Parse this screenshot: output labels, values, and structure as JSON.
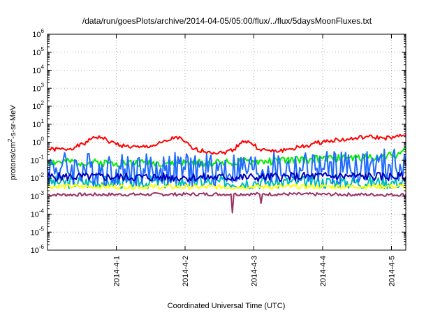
{
  "chart_data": {
    "type": "line",
    "title": "/data/run/goesPlots/archive/2014-04-05/05:00/flux/../flux/5daysMoonFluxes.txt",
    "xlabel": "Coordinated Universal Time (UTC)",
    "ylabel_parts": {
      "pre": "protons/cm",
      "sup": "2",
      "post": "-s-sr-MeV"
    },
    "y_scale": "log",
    "ylim": [
      1e-06,
      1000000.0
    ],
    "y_ticks": [
      {
        "exp": "-6",
        "value": 1e-06
      },
      {
        "exp": "-5",
        "value": 1e-05
      },
      {
        "exp": "-4",
        "value": 0.0001
      },
      {
        "exp": "-3",
        "value": 0.001
      },
      {
        "exp": "-2",
        "value": 0.01
      },
      {
        "exp": "-1",
        "value": 0.1
      },
      {
        "exp": "0",
        "value": 1
      },
      {
        "exp": "1",
        "value": 10
      },
      {
        "exp": "2",
        "value": 100
      },
      {
        "exp": "3",
        "value": 1000
      },
      {
        "exp": "4",
        "value": 10000
      },
      {
        "exp": "5",
        "value": 100000
      },
      {
        "exp": "6",
        "value": 1000000
      }
    ],
    "xlim": [
      "2014-03-31T00:00",
      "2014-04-05T05:00"
    ],
    "x_ticks": [
      {
        "label": "2014-4-1",
        "t": "2014-04-01T00:00"
      },
      {
        "label": "2014-4-2",
        "t": "2014-04-02T00:00"
      },
      {
        "label": "2014-4-3",
        "t": "2014-04-03T00:00"
      },
      {
        "label": "2014-4-4",
        "t": "2014-04-04T00:00"
      },
      {
        "label": "2014-4-5",
        "t": "2014-04-05T00:00"
      }
    ],
    "grid": true,
    "series": [
      {
        "color": "#ff0000",
        "noise": 0.04,
        "seed": 1,
        "points": [
          [
            "2014-03-31T00:00",
            0.4
          ],
          [
            "2014-03-31T06:00",
            0.4
          ],
          [
            "2014-03-31T10:00",
            0.55
          ],
          [
            "2014-03-31T14:00",
            1.0
          ],
          [
            "2014-03-31T16:00",
            2.0
          ],
          [
            "2014-03-31T19:00",
            1.8
          ],
          [
            "2014-03-31T22:00",
            1.0
          ],
          [
            "2014-04-01T03:00",
            0.6
          ],
          [
            "2014-04-01T08:00",
            0.5
          ],
          [
            "2014-04-01T14:00",
            0.7
          ],
          [
            "2014-04-01T18:00",
            1.2
          ],
          [
            "2014-04-01T21:00",
            2.0
          ],
          [
            "2014-04-02T00:00",
            1.0
          ],
          [
            "2014-04-02T03:00",
            0.4
          ],
          [
            "2014-04-02T08:00",
            0.3
          ],
          [
            "2014-04-02T13:00",
            0.25
          ],
          [
            "2014-04-02T17:00",
            0.4
          ],
          [
            "2014-04-02T20:00",
            1.2
          ],
          [
            "2014-04-02T23:00",
            0.9
          ],
          [
            "2014-04-03T02:00",
            0.4
          ],
          [
            "2014-04-03T07:00",
            0.3
          ],
          [
            "2014-04-03T12:00",
            0.4
          ],
          [
            "2014-04-03T18:00",
            0.6
          ],
          [
            "2014-04-03T22:00",
            0.9
          ],
          [
            "2014-04-04T03:00",
            1.3
          ],
          [
            "2014-04-04T09:00",
            1.4
          ],
          [
            "2014-04-04T15:00",
            2.0
          ],
          [
            "2014-04-04T21:00",
            1.7
          ],
          [
            "2014-04-05T01:00",
            1.8
          ],
          [
            "2014-04-05T05:00",
            2.5
          ]
        ]
      },
      {
        "color": "#00ee00",
        "noise": 0.07,
        "seed": 2,
        "points": [
          [
            "2014-03-31T00:00",
            0.08
          ],
          [
            "2014-04-01T00:00",
            0.07
          ],
          [
            "2014-04-02T00:00",
            0.07
          ],
          [
            "2014-04-03T00:00",
            0.08
          ],
          [
            "2014-04-04T00:00",
            0.12
          ],
          [
            "2014-04-04T20:00",
            0.15
          ],
          [
            "2014-04-05T02:00",
            0.2
          ],
          [
            "2014-04-05T05:00",
            0.35
          ]
        ]
      },
      {
        "color": "#00bbbb",
        "noise": 0.12,
        "seed": 3,
        "points": [
          [
            "2014-03-31T00:00",
            0.006
          ],
          [
            "2014-04-02T00:00",
            0.006
          ],
          [
            "2014-04-03T00:00",
            0.006
          ],
          [
            "2014-04-05T05:00",
            0.006
          ]
        ]
      },
      {
        "color": "#1e6aff",
        "noise": 0.32,
        "seed": 4,
        "points": [
          [
            "2014-03-31T00:00",
            0.04
          ],
          [
            "2014-04-01T00:00",
            0.03
          ],
          [
            "2014-04-02T00:00",
            0.03
          ],
          [
            "2014-04-03T00:00",
            0.03
          ],
          [
            "2014-04-04T00:00",
            0.035
          ],
          [
            "2014-04-05T05:00",
            0.05
          ]
        ]
      },
      {
        "color": "#0000bb",
        "noise": 0.08,
        "seed": 5,
        "points": [
          [
            "2014-03-31T00:00",
            0.012
          ],
          [
            "2014-04-02T00:00",
            0.011
          ],
          [
            "2014-04-03T00:00",
            0.011
          ],
          [
            "2014-04-04T00:00",
            0.013
          ],
          [
            "2014-04-05T05:00",
            0.012
          ]
        ]
      },
      {
        "color": "#ffff00",
        "noise": 0.04,
        "seed": 6,
        "points": [
          [
            "2014-03-31T00:00",
            0.0035
          ],
          [
            "2014-04-02T00:00",
            0.0032
          ],
          [
            "2014-04-04T00:00",
            0.0034
          ],
          [
            "2014-04-05T05:00",
            0.0035
          ]
        ]
      },
      {
        "color": "#993366",
        "noise": 0.03,
        "seed": 7,
        "points": [
          [
            "2014-03-31T00:00",
            0.0012
          ],
          [
            "2014-04-02T16:00",
            0.0013
          ],
          [
            "2014-04-02T16:30",
            0.00012
          ],
          [
            "2014-04-02T17:00",
            0.0013
          ],
          [
            "2014-04-03T02:00",
            0.0013
          ],
          [
            "2014-04-03T02:30",
            0.0004
          ],
          [
            "2014-04-03T03:00",
            0.0013
          ],
          [
            "2014-04-05T05:00",
            0.0012
          ]
        ]
      }
    ]
  }
}
